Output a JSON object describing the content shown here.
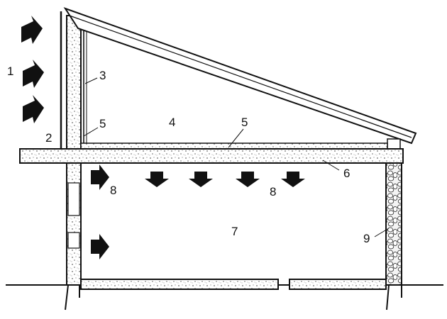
{
  "diagram": {
    "labels": {
      "l1": "1",
      "l2": "2",
      "l3": "3",
      "l4": "4",
      "l5a": "5",
      "l5b": "5",
      "l6": "6",
      "l7": "7",
      "l8a": "8",
      "l8b": "8",
      "l9": "9"
    },
    "colors": {
      "ink": "#111111",
      "paper": "#ffffff",
      "speckle": "#777777",
      "stone_fill": "#f4f4f4"
    }
  }
}
